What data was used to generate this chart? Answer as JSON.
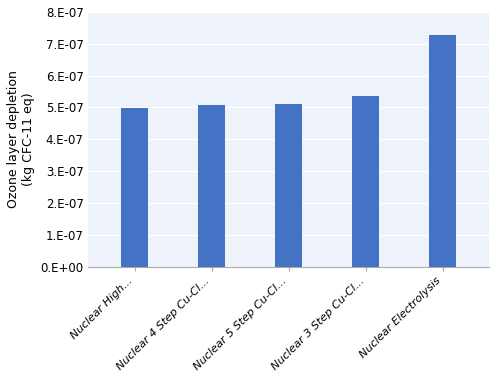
{
  "categories": [
    "Nuclear High...",
    "Nuclear 4 Step Cu-Cl...",
    "Nuclear 5 Step Cu-Cl...",
    "Nuclear 3 Step Cu-Cl...",
    "Nuclear Electrolysis"
  ],
  "values": [
    4.98e-07,
    5.07e-07,
    5.1e-07,
    5.35e-07,
    7.28e-07
  ],
  "bar_color": "#4472C4",
  "ylabel": "Ozone layer depletion\n(kg CFC-11 eq)",
  "ylim": [
    0,
    8e-07
  ],
  "yticks": [
    0,
    1e-07,
    2e-07,
    3e-07,
    4e-07,
    5e-07,
    6e-07,
    7e-07,
    8e-07
  ],
  "ytick_labels": [
    "0.E+00",
    "1.E-07",
    "2.E-07",
    "3.E-07",
    "4.E-07",
    "5.E-07",
    "6.E-07",
    "7.E-07",
    "8.E-07"
  ],
  "background_color": "#FFFFFF",
  "plot_bg_color": "#EEF3FB",
  "grid_color": "#FFFFFF"
}
